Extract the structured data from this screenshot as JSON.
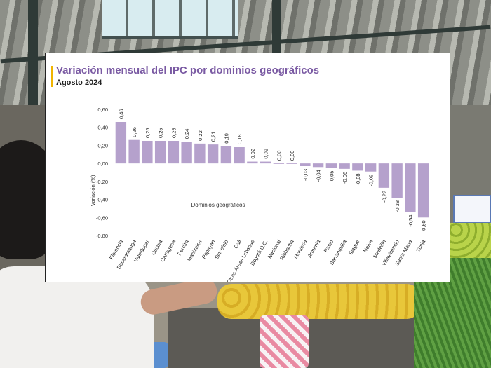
{
  "chart_data": {
    "type": "bar",
    "title": "Variación mensual del IPC por dominios geográficos",
    "subtitle": "Agosto 2024",
    "xlabel": "Dominios geográficos",
    "ylabel": "Variación (%)",
    "ylim": [
      -0.8,
      0.6
    ],
    "yticks": [
      "0,60",
      "0,40",
      "0,20",
      "0,00",
      "-0,20",
      "-0,40",
      "-0,60",
      "-0,80"
    ],
    "ytick_values": [
      0.6,
      0.4,
      0.2,
      0.0,
      -0.2,
      -0.4,
      -0.6,
      -0.8
    ],
    "categories": [
      "Florencia",
      "Bucaramanga",
      "Valledupar",
      "Cúcuta",
      "Cartagena",
      "Pereira",
      "Manizales",
      "Popayán",
      "Sincelejo",
      "Cali",
      "Otras Áreas Urbanas",
      "Bogotá D.C.",
      "Nacional",
      "Riohacha",
      "Montería",
      "Armenia",
      "Pasto",
      "Barranquilla",
      "Ibagué",
      "Neiva",
      "Medellín",
      "Villavicencio",
      "Santa Marta",
      "Tunja"
    ],
    "values": [
      0.46,
      0.26,
      0.25,
      0.25,
      0.25,
      0.24,
      0.22,
      0.21,
      0.19,
      0.18,
      0.02,
      0.02,
      0.0,
      0.0,
      -0.03,
      -0.04,
      -0.05,
      -0.06,
      -0.08,
      -0.09,
      -0.27,
      -0.38,
      -0.54,
      -0.6
    ],
    "value_labels": [
      "0,46",
      "0,26",
      "0,25",
      "0,25",
      "0,25",
      "0,24",
      "0,22",
      "0,21",
      "0,19",
      "0,18",
      "0,02",
      "0,02",
      "0,00",
      "0,00",
      "-0,03",
      "-0,04",
      "-0,05",
      "-0,06",
      "-0,08",
      "-0,09",
      "-0,27",
      "-0,38",
      "-0,54",
      "-0,60"
    ],
    "bar_color": "#b5a1cc",
    "grid": false
  },
  "colors": {
    "title": "#7a5aa3",
    "accent": "#f0b400"
  }
}
